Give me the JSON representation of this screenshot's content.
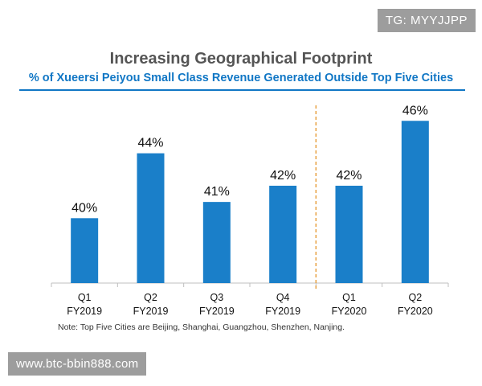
{
  "watermark_top": "TG: MYYJJPP",
  "watermark_bottom": "www.btc-bbin888.com",
  "chart_data": {
    "type": "bar",
    "title": "Increasing Geographical Footprint",
    "subtitle": "% of Xueersi Peiyou Small Class Revenue Generated Outside Top Five Cities",
    "categories": [
      [
        "Q1",
        "FY2019"
      ],
      [
        "Q2",
        "FY2019"
      ],
      [
        "Q3",
        "FY2019"
      ],
      [
        "Q4",
        "FY2019"
      ],
      [
        "Q1",
        "FY2020"
      ],
      [
        "Q2",
        "FY2020"
      ]
    ],
    "values": [
      40,
      44,
      41,
      42,
      42,
      46
    ],
    "data_labels": [
      "40%",
      "44%",
      "41%",
      "42%",
      "42%",
      "46%"
    ],
    "ylim": [
      36,
      47.5
    ],
    "divider_after_index": 3,
    "bar_color": "#1a7fc9",
    "divider_color": "#e8a040",
    "note": "Note: Top Five Cities are Beijing, Shanghai, Guangzhou, Shenzhen, Nanjing."
  }
}
